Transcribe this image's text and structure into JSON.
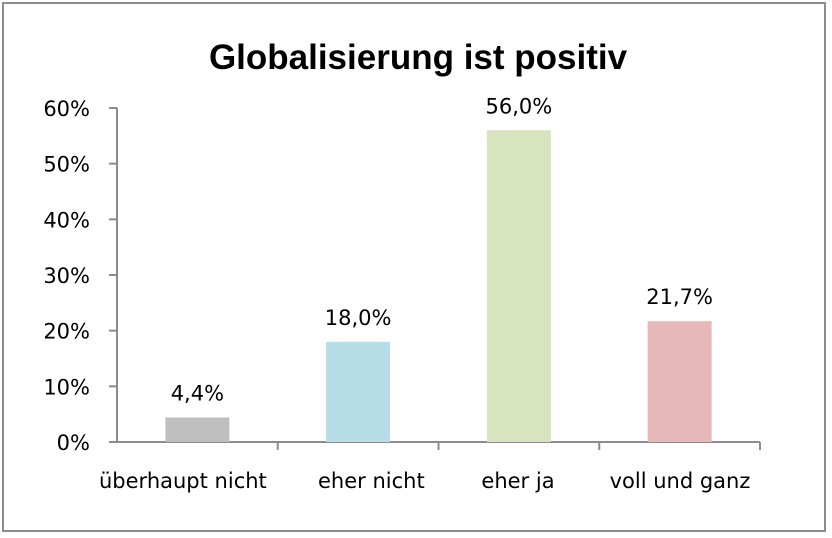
{
  "chart_data": {
    "type": "bar",
    "title": "Globalisierung ist positiv",
    "categories": [
      "überhaupt nicht",
      "eher nicht",
      "eher ja",
      "voll und ganz"
    ],
    "values": [
      4.4,
      18.0,
      56.0,
      21.7
    ],
    "data_labels": [
      "4,4%",
      "18,0%",
      "56,0%",
      "21,7%"
    ],
    "colors": [
      "#bfbfbf",
      "#b7dde8",
      "#d7e4bd",
      "#e6b9b8"
    ],
    "ylim": [
      0,
      60
    ],
    "yticks": [
      0,
      10,
      20,
      30,
      40,
      50,
      60
    ],
    "ytick_labels": [
      "0%",
      "10%",
      "20%",
      "30%",
      "40%",
      "50%",
      "60%"
    ],
    "xlabel": "",
    "ylabel": "",
    "grid": false,
    "legend": "none"
  }
}
